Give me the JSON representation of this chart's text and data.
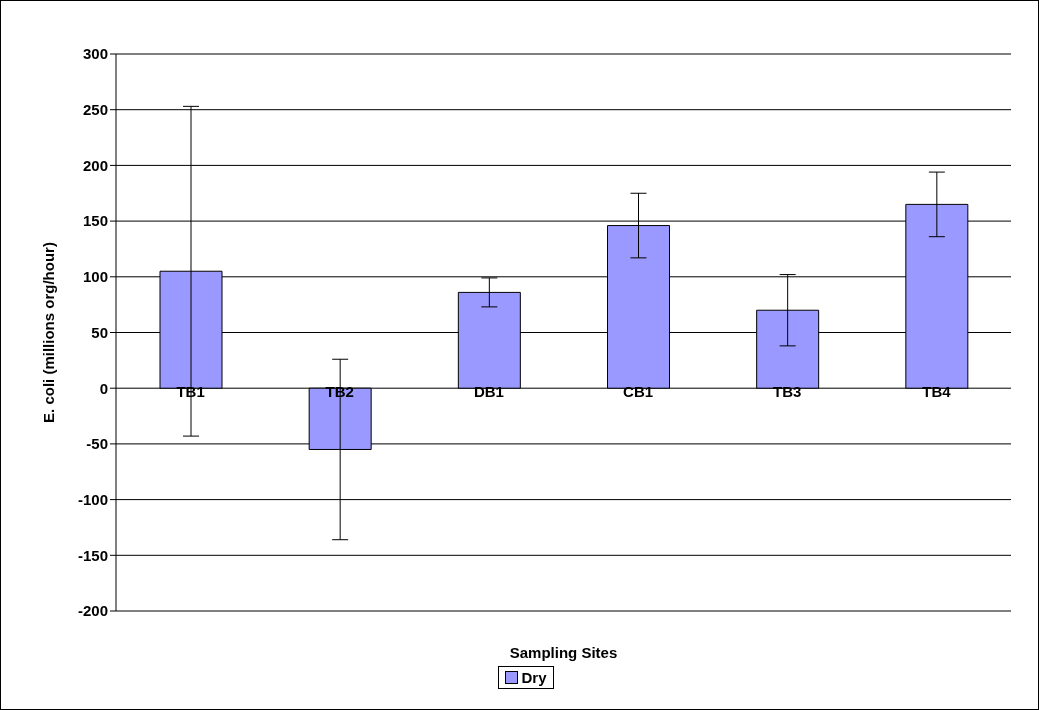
{
  "chart_data": {
    "type": "bar",
    "xlabel": "Sampling Sites",
    "ylabel": "E. coli (millions org/hour)",
    "categories": [
      "TB1",
      "TB2",
      "DB1",
      "CB1",
      "TB3",
      "TB4"
    ],
    "series": [
      {
        "name": "Dry",
        "color": "#9999ff",
        "values": [
          105,
          -55,
          86,
          146,
          70,
          165
        ],
        "errors": [
          148,
          81,
          13,
          29,
          32,
          29
        ]
      }
    ],
    "ylim": [
      -200,
      300
    ],
    "yticks": [
      -200,
      -150,
      -100,
      -50,
      0,
      50,
      100,
      150,
      200,
      250,
      300
    ],
    "grid": "y",
    "legend": "bottom"
  }
}
